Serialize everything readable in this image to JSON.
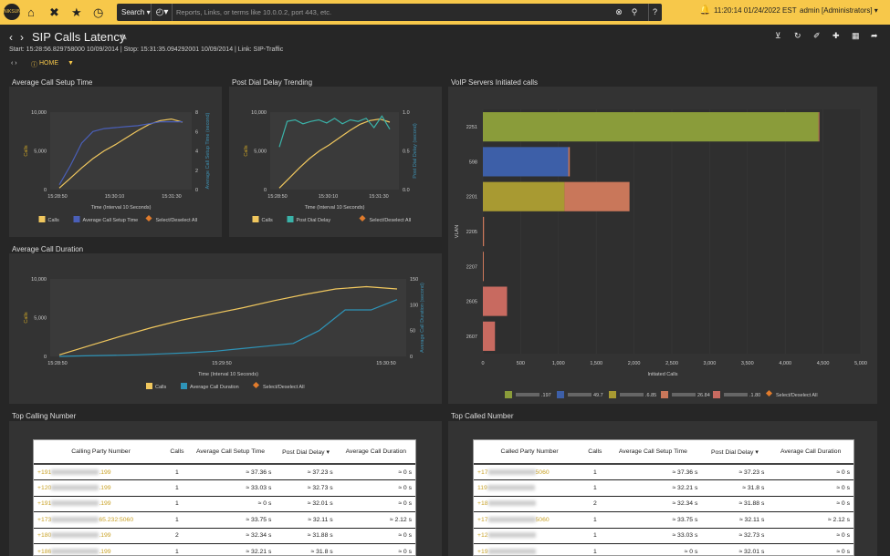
{
  "topbar": {
    "search_label": "Search ▾",
    "search_placeholder": "Reports, Links, or terms like 10.0.0.2, port 443, etc.",
    "time": "11:20:14 01/24/2022 EST",
    "user": "admin [Administrators] ▾",
    "help": "?"
  },
  "page": {
    "title": "SIP Calls Latency",
    "subline": "Start: 15:28:56.829758000 10/09/2014 | Stop: 15:31:35.094292001 10/09/2014 | Link: SIP-Traffic",
    "crumb": "HOME"
  },
  "panels": {
    "p1": "Average Call Setup Time",
    "p2": "Post Dial Delay Trending",
    "p3": "Average Call Duration",
    "p4": "VoIP Servers Initiated calls",
    "p5": "Top Calling Number",
    "p6": "Top Called Number"
  },
  "charts": {
    "setup": {
      "yl": "Calls",
      "yr": "Average Call Setup Time (second)",
      "xl": "Time (Interval 10 Seconds)",
      "lg": [
        "Calls",
        "Average Call Setup Time",
        "Select/Deselect All"
      ],
      "ticks_l": [
        "10,000",
        "5,000",
        "0"
      ],
      "ticks_r": [
        "8",
        "6",
        "4",
        "2",
        "0"
      ],
      "ticks_x": [
        "15:28:50",
        "15:30:10",
        "15:31:30"
      ],
      "calls": [
        200,
        1500,
        2800,
        4000,
        5000,
        5800,
        6700,
        7600,
        8400,
        8900,
        9100,
        8700
      ],
      "metric": [
        0.5,
        2.5,
        4.8,
        6.0,
        6.3,
        6.4,
        6.5,
        6.6,
        6.8,
        7.0,
        7.0,
        7.0
      ]
    },
    "pdd": {
      "yl": "Calls",
      "yr": "Post Dial Delay (second)",
      "xl": "Time (Interval 10 Seconds)",
      "lg": [
        "Calls",
        "Post Dial Delay",
        "Select/Deselect All"
      ],
      "ticks_l": [
        "10,000",
        "5,000",
        "0"
      ],
      "ticks_r": [
        "1.0",
        "0.5",
        "0.0"
      ],
      "ticks_x": [
        "15:28:50",
        "15:30:10",
        "15:31:30"
      ],
      "calls": [
        200,
        1500,
        2800,
        4000,
        5000,
        5800,
        6700,
        7600,
        8400,
        8900,
        9100,
        8700
      ],
      "metric": [
        0.55,
        0.88,
        0.9,
        0.85,
        0.88,
        0.9,
        0.86,
        0.92,
        0.85,
        0.9,
        0.88,
        0.92,
        0.8,
        0.95,
        0.78
      ]
    },
    "duration": {
      "yl": "Calls",
      "yr": "Average Call Duration (second)",
      "xl": "Time (Interval 10 Seconds)",
      "lg": [
        "Calls",
        "Average Call Duration",
        "Select/Deselect All"
      ],
      "ticks_l": [
        "10,000",
        "5,000",
        "0"
      ],
      "ticks_r": [
        "150",
        "100",
        "50",
        "0"
      ],
      "ticks_x": [
        "15:28:50",
        "15:29:50",
        "15:30:50"
      ],
      "calls": [
        200,
        1400,
        2600,
        3700,
        4700,
        5500,
        6300,
        7200,
        8000,
        8700,
        9000,
        8700
      ],
      "metric": [
        0,
        1,
        2,
        3,
        5,
        7,
        10,
        15,
        20,
        25,
        50,
        90,
        90,
        110
      ]
    },
    "voip": {
      "ylabel": "VLAN",
      "xlabel": "Initiated Calls",
      "cats": [
        "2251",
        "598",
        "2201",
        "2205",
        "2207",
        "2605",
        "2607"
      ],
      "ticks_x": [
        "0",
        "500",
        "1,000",
        "1,500",
        "2,000",
        "2,500",
        "3,000",
        "3,500",
        "4,000",
        "4,500",
        "5,000"
      ],
      "series": [
        {
          "color": "#8a9c3a",
          "values": [
            4440,
            0,
            0,
            0,
            0,
            0,
            0
          ]
        },
        {
          "color": "#3d5fa8",
          "values": [
            0,
            1130,
            0,
            0,
            0,
            0,
            0
          ]
        },
        {
          "color": "#a89a32",
          "values": [
            0,
            0,
            1080,
            0,
            0,
            0,
            0
          ]
        },
        {
          "color": "#c9775a",
          "values": [
            10,
            20,
            860,
            15,
            10,
            0,
            0
          ]
        },
        {
          "color": "#c86a60",
          "values": [
            0,
            0,
            0,
            0,
            0,
            320,
            160
          ]
        }
      ],
      "legend": [
        ".197",
        "49.7",
        ".6.85",
        "26.84",
        ".1.80",
        "Select/Deselect All"
      ]
    }
  },
  "tables": {
    "calling": {
      "headers": [
        "Calling Party Number",
        "Calls",
        "Average Call Setup Time",
        "Post Dial Delay ▾",
        "Average Call Duration"
      ],
      "rows": [
        [
          "+191",
          ".199",
          "1",
          "≈ 37.36 s",
          "≈ 37.23 s",
          "≈ 0 s"
        ],
        [
          "+120",
          ".199",
          "1",
          "≈ 33.03 s",
          "≈ 32.73 s",
          "≈ 0 s"
        ],
        [
          "+191",
          ".199",
          "1",
          "≈ 0 s",
          "≈ 32.01 s",
          "≈ 0 s"
        ],
        [
          "+173",
          "65.232:5060",
          "1",
          "≈ 33.75 s",
          "≈ 32.11 s",
          "≈ 2.12 s"
        ],
        [
          "+180",
          ".199",
          "2",
          "≈ 32.34 s",
          "≈ 31.88 s",
          "≈ 0 s"
        ],
        [
          "+186",
          ".199",
          "1",
          "≈ 32.21 s",
          "≈ 31.8 s",
          "≈ 0 s"
        ]
      ]
    },
    "called": {
      "headers": [
        "Called Party Number",
        "Calls",
        "Average Call Setup Time",
        "Post Dial Delay ▾",
        "Average Call Duration"
      ],
      "rows": [
        [
          "+17",
          "5060",
          "1",
          "≈ 37.36 s",
          "≈ 37.23 s",
          "≈ 0 s"
        ],
        [
          "119",
          "",
          "1",
          "≈ 32.21 s",
          "≈ 31.8 s",
          "≈ 0 s"
        ],
        [
          "+18",
          "",
          "2",
          "≈ 32.34 s",
          "≈ 31.88 s",
          "≈ 0 s"
        ],
        [
          "+17",
          "5060",
          "1",
          "≈ 33.75 s",
          "≈ 32.11 s",
          "≈ 2.12 s"
        ],
        [
          "+12",
          "",
          "1",
          "≈ 33.03 s",
          "≈ 32.73 s",
          "≈ 0 s"
        ],
        [
          "+19",
          "",
          "1",
          "≈ 0 s",
          "≈ 32.01 s",
          "≈ 0 s"
        ]
      ]
    }
  }
}
